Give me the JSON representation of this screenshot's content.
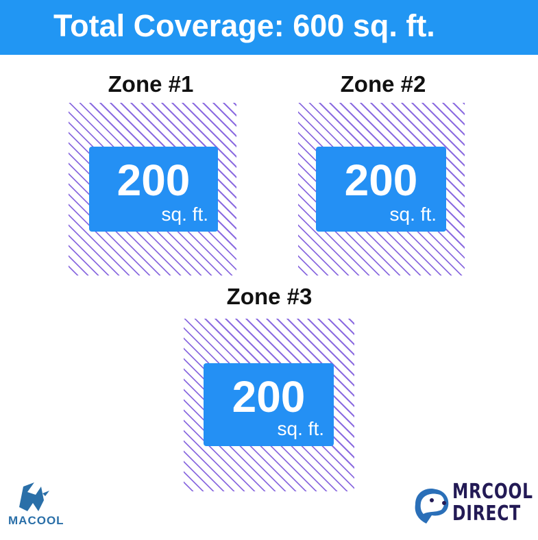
{
  "header": {
    "title": "Total Coverage: 600 sq. ft."
  },
  "zones": [
    {
      "title": "Zone #1",
      "value": "200",
      "unit": "sq. ft."
    },
    {
      "title": "Zone #2",
      "value": "200",
      "unit": "sq. ft."
    },
    {
      "title": "Zone #3",
      "value": "200",
      "unit": "sq. ft."
    }
  ],
  "logos": {
    "left": "MACOOL",
    "right_line1": "MRCOOL",
    "right_line2": "DIRECT"
  },
  "colors": {
    "header": "#2196f3",
    "card": "#2490f4",
    "hatch": "#8b6be0",
    "brand_dark": "#231a55"
  }
}
